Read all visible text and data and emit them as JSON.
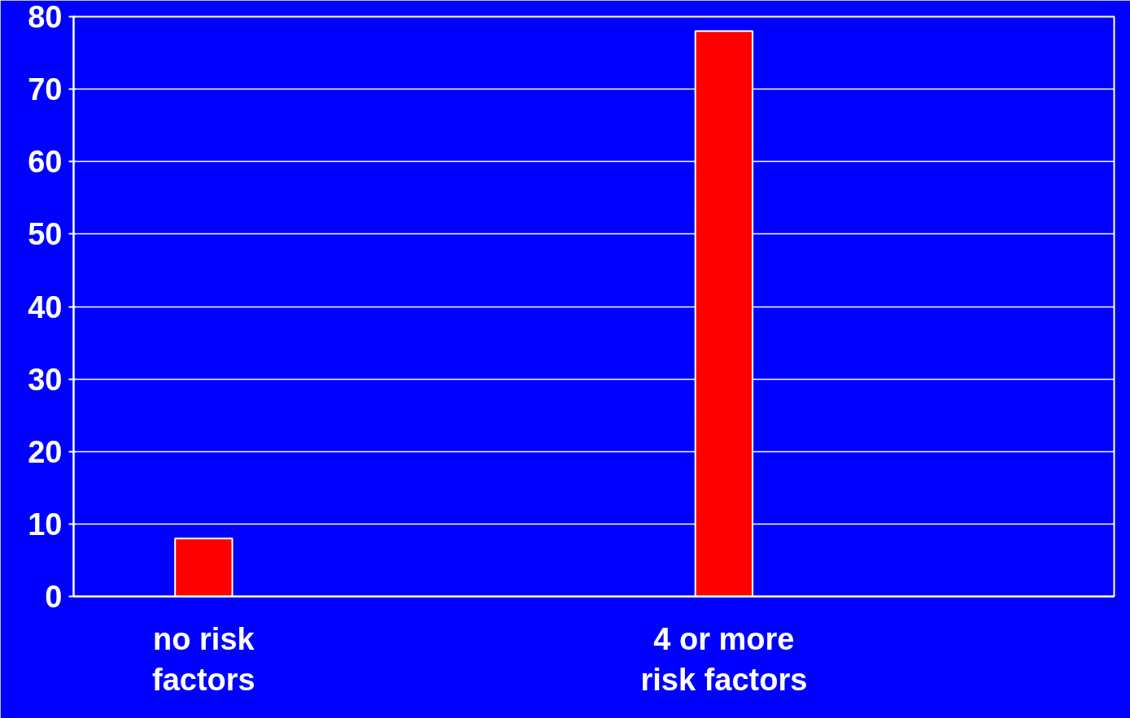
{
  "chart_data": {
    "type": "bar",
    "categories": [
      "no risk\nfactors",
      null,
      "4 or more\nrisk factors",
      null
    ],
    "values": [
      8,
      null,
      78,
      null
    ],
    "color": "#ff0000",
    "ylim": [
      0,
      80
    ],
    "yticks": [
      0,
      10,
      20,
      30,
      40,
      50,
      60,
      70,
      80
    ],
    "grid": "y"
  }
}
